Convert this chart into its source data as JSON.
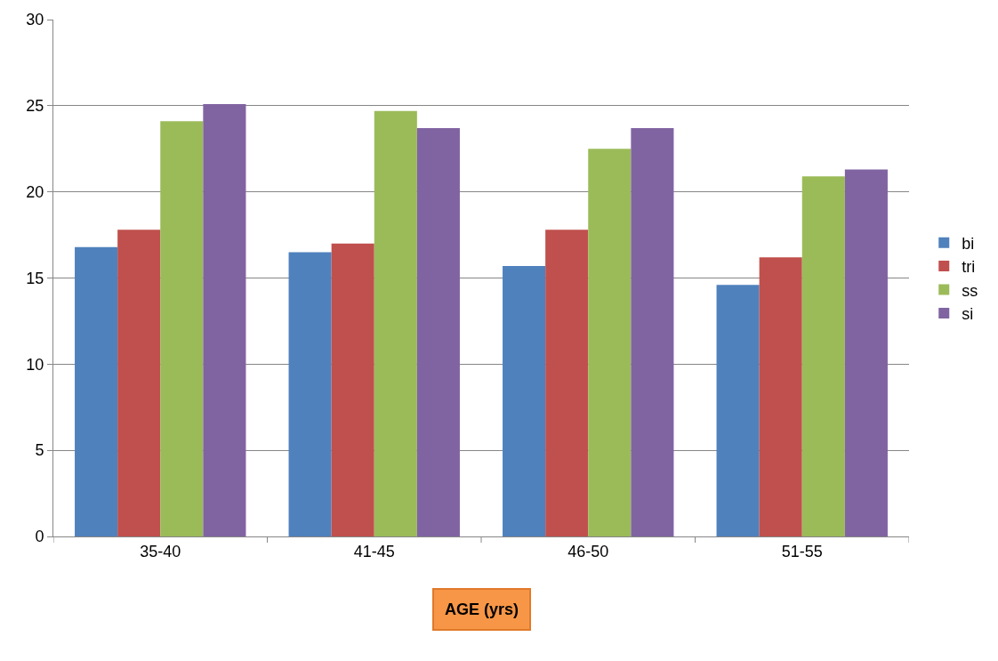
{
  "chart_data": {
    "type": "bar",
    "xlabel": "AGE (yrs)",
    "categories": [
      "35-40",
      "41-45",
      "46-50",
      "51-55"
    ],
    "series": [
      {
        "name": "bi",
        "color": "#4f81bd",
        "values": [
          16.8,
          16.5,
          15.7,
          14.6
        ]
      },
      {
        "name": "tri",
        "color": "#c0504d",
        "values": [
          17.8,
          17.0,
          17.8,
          16.2
        ]
      },
      {
        "name": "ss",
        "color": "#9bbb59",
        "values": [
          24.1,
          24.7,
          22.5,
          20.9
        ]
      },
      {
        "name": "si",
        "color": "#8064a2",
        "values": [
          25.1,
          23.7,
          23.7,
          21.3
        ]
      }
    ],
    "ylim": [
      0,
      30
    ],
    "yticks": [
      0,
      5,
      10,
      15,
      20,
      25,
      30
    ],
    "grid": "y",
    "legend": "right"
  }
}
